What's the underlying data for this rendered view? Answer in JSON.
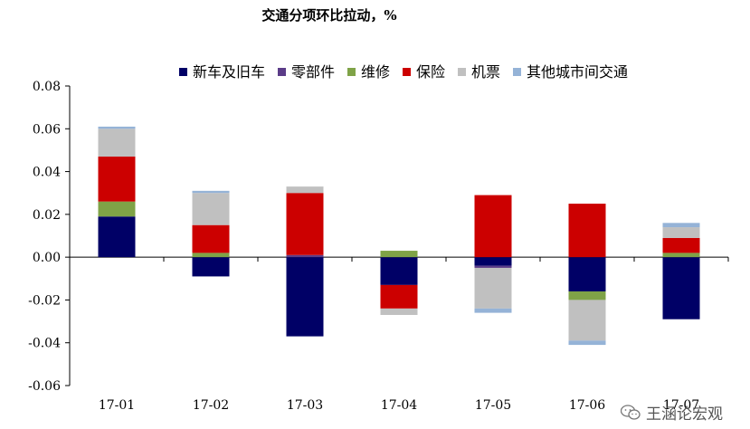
{
  "chart_data": {
    "type": "bar",
    "stacked": true,
    "title": "交通分项环比拉动，%",
    "categories": [
      "17-01",
      "17-02",
      "17-03",
      "17-04",
      "17-05",
      "17-06",
      "17-07"
    ],
    "ylim": [
      -0.06,
      0.08
    ],
    "yticks": [
      0.08,
      0.06,
      0.04,
      0.02,
      0.0,
      -0.02,
      -0.04,
      -0.06
    ],
    "ytick_labels": [
      "0.08",
      "0.06",
      "0.04",
      "0.02",
      "0.00",
      "-0.02",
      "-0.04",
      "-0.06"
    ],
    "legend_position": "top",
    "grid": false,
    "series": [
      {
        "name": "新车及旧车",
        "color": "#000066",
        "values": [
          0.019,
          -0.009,
          -0.037,
          -0.013,
          -0.004,
          -0.016,
          -0.029
        ]
      },
      {
        "name": "零部件",
        "color": "#5B3C88",
        "values": [
          0.0,
          0.0,
          0.001,
          0.0,
          -0.001,
          0.0,
          0.0
        ]
      },
      {
        "name": "维修",
        "color": "#7FA347",
        "values": [
          0.007,
          0.002,
          0.0,
          0.003,
          0.0,
          -0.004,
          0.002
        ]
      },
      {
        "name": "保险",
        "color": "#CC0000",
        "values": [
          0.021,
          0.013,
          0.029,
          -0.011,
          0.029,
          0.025,
          0.007
        ]
      },
      {
        "name": "机票",
        "color": "#C0C0C0",
        "values": [
          0.013,
          0.015,
          0.003,
          -0.003,
          -0.019,
          -0.019,
          0.005
        ]
      },
      {
        "name": "其他城市间交通",
        "color": "#95B3D7",
        "values": [
          0.001,
          0.001,
          0.0,
          0.0,
          -0.002,
          -0.002,
          0.002
        ]
      }
    ]
  },
  "watermark": {
    "text": "王涵论宏观",
    "icon": "wechat-icon"
  }
}
